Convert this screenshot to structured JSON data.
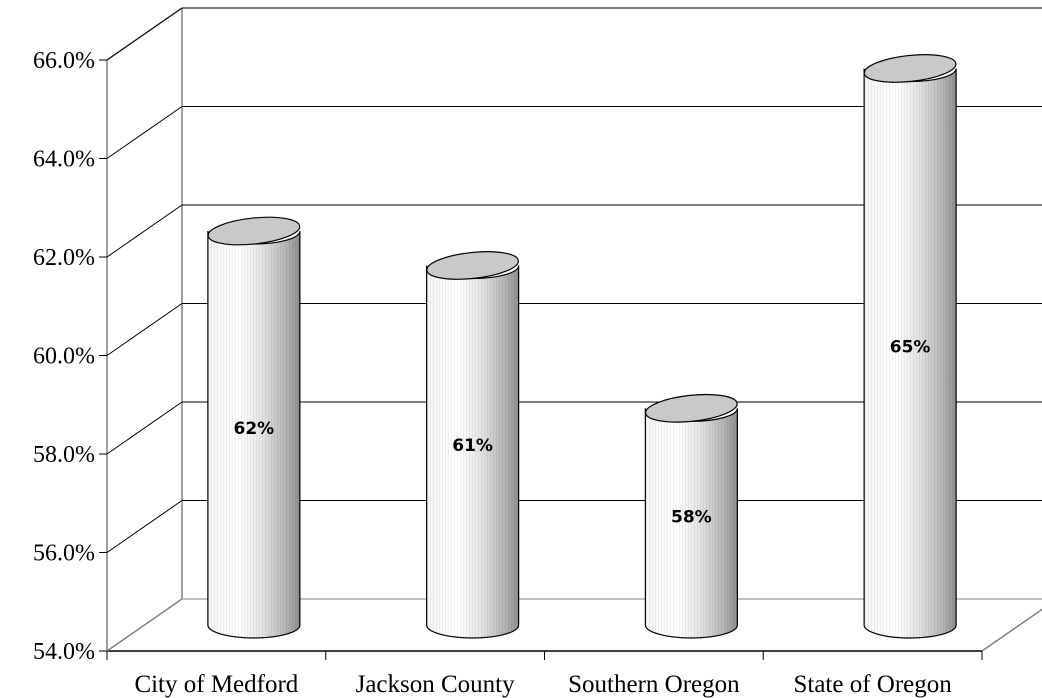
{
  "chart_data": {
    "type": "bar",
    "style": "3d-cylinder",
    "categories": [
      "City of Medford",
      "Jackson County",
      "Southern Oregon",
      "State of Oregon"
    ],
    "values": [
      62.0,
      61.3,
      58.4,
      65.3
    ],
    "data_labels": [
      "62%",
      "61%",
      "58%",
      "65%"
    ],
    "ylim": [
      54,
      66
    ],
    "yticks": [
      54,
      56,
      58,
      60,
      62,
      64,
      66
    ],
    "ytick_labels": [
      "54.0%",
      "56.0%",
      "58.0%",
      "60.0%",
      "62.0%",
      "64.0%",
      "66.0%"
    ],
    "grid": true,
    "legend": "none"
  }
}
